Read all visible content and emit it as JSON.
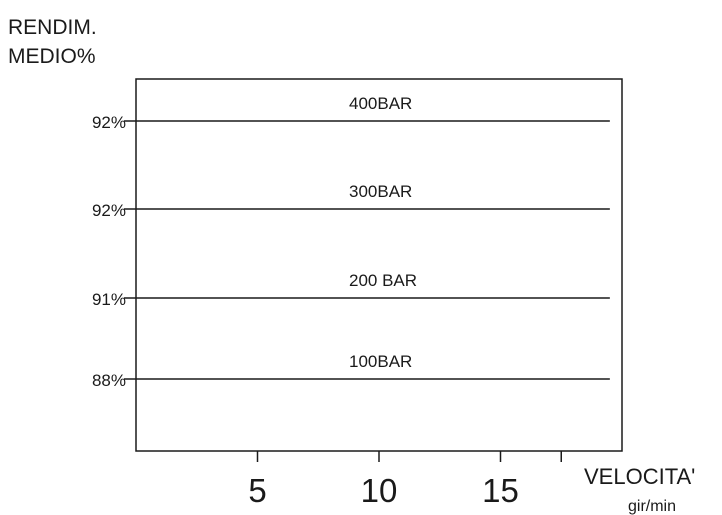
{
  "chart_data": {
    "type": "line",
    "ylabel_line1": "RENDIM.",
    "ylabel_line2": "MEDIO%",
    "xlabel": "VELOCITA'",
    "xunit": "gir/min",
    "xlim": [
      0,
      20
    ],
    "x_ticks": [
      {
        "value": 5,
        "label": "5"
      },
      {
        "value": 10,
        "label": "10"
      },
      {
        "value": 15,
        "label": "15"
      },
      {
        "value": 17.5,
        "label": ""
      }
    ],
    "grid": false,
    "series": [
      {
        "name": "400BAR",
        "value_label": "92%",
        "x": [
          0,
          19.5
        ],
        "y": [
          92,
          92
        ]
      },
      {
        "name": "300BAR",
        "value_label": "92%",
        "x": [
          0,
          19.5
        ],
        "y": [
          92,
          92
        ]
      },
      {
        "name": "200 BAR",
        "value_label": "91%",
        "x": [
          0,
          19.5
        ],
        "y": [
          91,
          91
        ]
      },
      {
        "name": "100BAR",
        "value_label": "88%",
        "x": [
          0,
          19.5
        ],
        "y": [
          88,
          88
        ]
      }
    ]
  }
}
